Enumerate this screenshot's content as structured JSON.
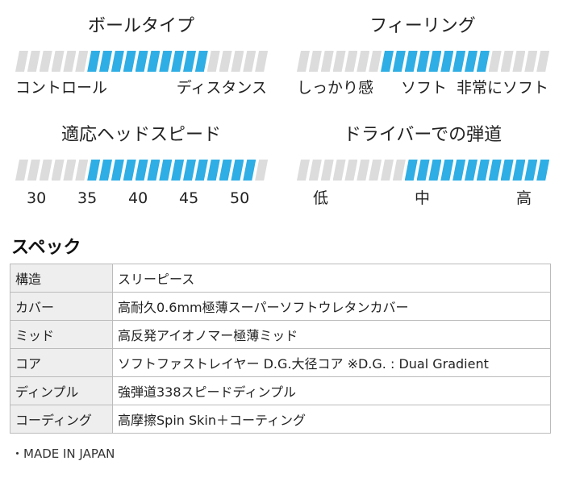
{
  "colors": {
    "active": "#2eaee5",
    "inactive": "#dcdcdc",
    "text": "#222222"
  },
  "scales": {
    "ball_type": {
      "title": "ボールタイプ",
      "left": "コントロール",
      "right": "ディスタンス",
      "highlight": [
        0.3,
        0.75
      ]
    },
    "feeling": {
      "title": "フィーリング",
      "left": "しっかり感",
      "middle": "ソフト",
      "right": "非常にソフト",
      "highlight": [
        0.32,
        0.78
      ]
    },
    "head_speed": {
      "title": "適応ヘッドスピード",
      "ticks": [
        "30",
        "35",
        "40",
        "45",
        "50"
      ],
      "highlight": [
        0.3,
        0.97
      ]
    },
    "trajectory": {
      "title": "ドライバーでの弾道",
      "low": "低",
      "mid": "中",
      "high": "高",
      "highlight": [
        0.42,
        1.0
      ]
    }
  },
  "spec": {
    "heading": "スペック",
    "rows": [
      {
        "key": "構造",
        "value": "スリーピース"
      },
      {
        "key": "カバー",
        "value": "高耐久0.6mm極薄スーパーソフトウレタンカバー"
      },
      {
        "key": "ミッド",
        "value": "高反発アイオノマー極薄ミッド"
      },
      {
        "key": "コア",
        "value": "ソフトファストレイヤー D.G.大径コア ※D.G. : Dual Gradient"
      },
      {
        "key": "ディンプル",
        "value": "強弾道338スピードディンプル"
      },
      {
        "key": "コーディング",
        "value": "高摩擦Spin Skin＋コーティング"
      }
    ],
    "note": "・MADE IN JAPAN"
  }
}
